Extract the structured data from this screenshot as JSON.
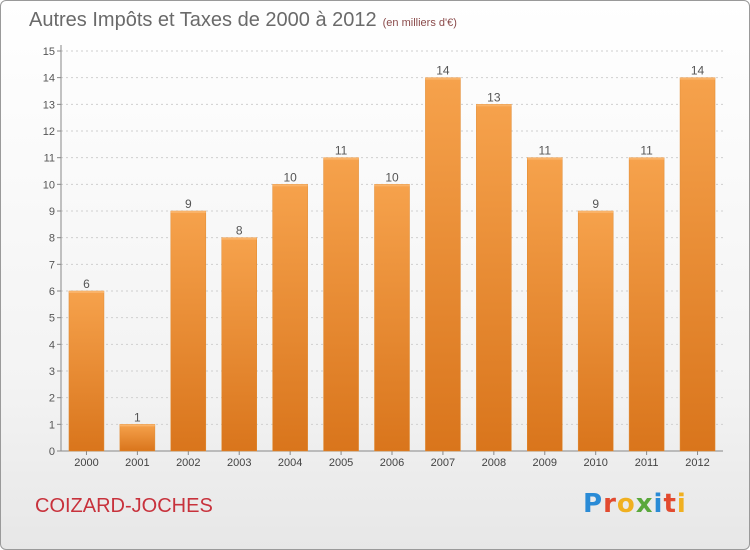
{
  "header": {
    "title": "Autres Impôts et Taxes de 2000 à 2012",
    "unit": "(en milliers d'€)"
  },
  "footer": {
    "commune": "COIZARD-JOCHES",
    "brand": "Proxiti"
  },
  "colors": {
    "bar_light": "#f6a24c",
    "bar_dark": "#d9751c",
    "commune_text": "#c8323c",
    "brand_letters": [
      "#2a8bd6",
      "#e24a2f",
      "#f0b020",
      "#5aa83c",
      "#2a8bd6",
      "#e24a2f",
      "#f0b020"
    ]
  },
  "chart_data": {
    "type": "bar",
    "categories": [
      "2000",
      "2001",
      "2002",
      "2003",
      "2004",
      "2005",
      "2006",
      "2007",
      "2008",
      "2009",
      "2010",
      "2011",
      "2012"
    ],
    "values": [
      6,
      1,
      9,
      8,
      10,
      11,
      10,
      14,
      13,
      11,
      9,
      11,
      14
    ],
    "title": "Autres Impôts et Taxes de 2000 à 2012",
    "subtitle": "(en milliers d'€)",
    "ylim": [
      0,
      15
    ],
    "yticks": [
      0,
      1,
      2,
      3,
      4,
      5,
      6,
      7,
      8,
      9,
      10,
      11,
      12,
      13,
      14,
      15
    ],
    "grid": true,
    "data_labels": true
  }
}
